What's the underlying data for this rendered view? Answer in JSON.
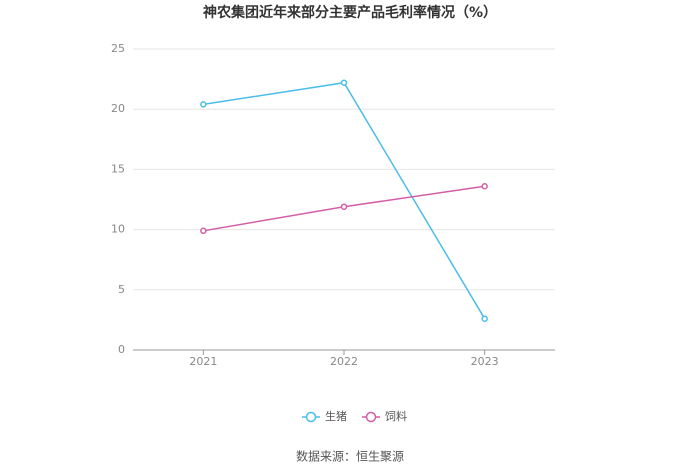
{
  "chart_data": {
    "type": "line",
    "title": "神农集团近年来部分主要产品毛利率情况（%）",
    "categories": [
      "2021",
      "2022",
      "2023"
    ],
    "series": [
      {
        "name": "生猪",
        "color": "#4bbde9",
        "values": [
          20.4,
          22.2,
          2.6
        ]
      },
      {
        "name": "饲料",
        "color": "#d45ea6",
        "values": [
          9.9,
          11.9,
          13.6
        ]
      }
    ],
    "ylim": [
      0,
      25
    ],
    "yticks": [
      0,
      5,
      10,
      15,
      20,
      25
    ],
    "grid": true,
    "legend": "bottom",
    "source": "数据来源：恒生聚源"
  }
}
